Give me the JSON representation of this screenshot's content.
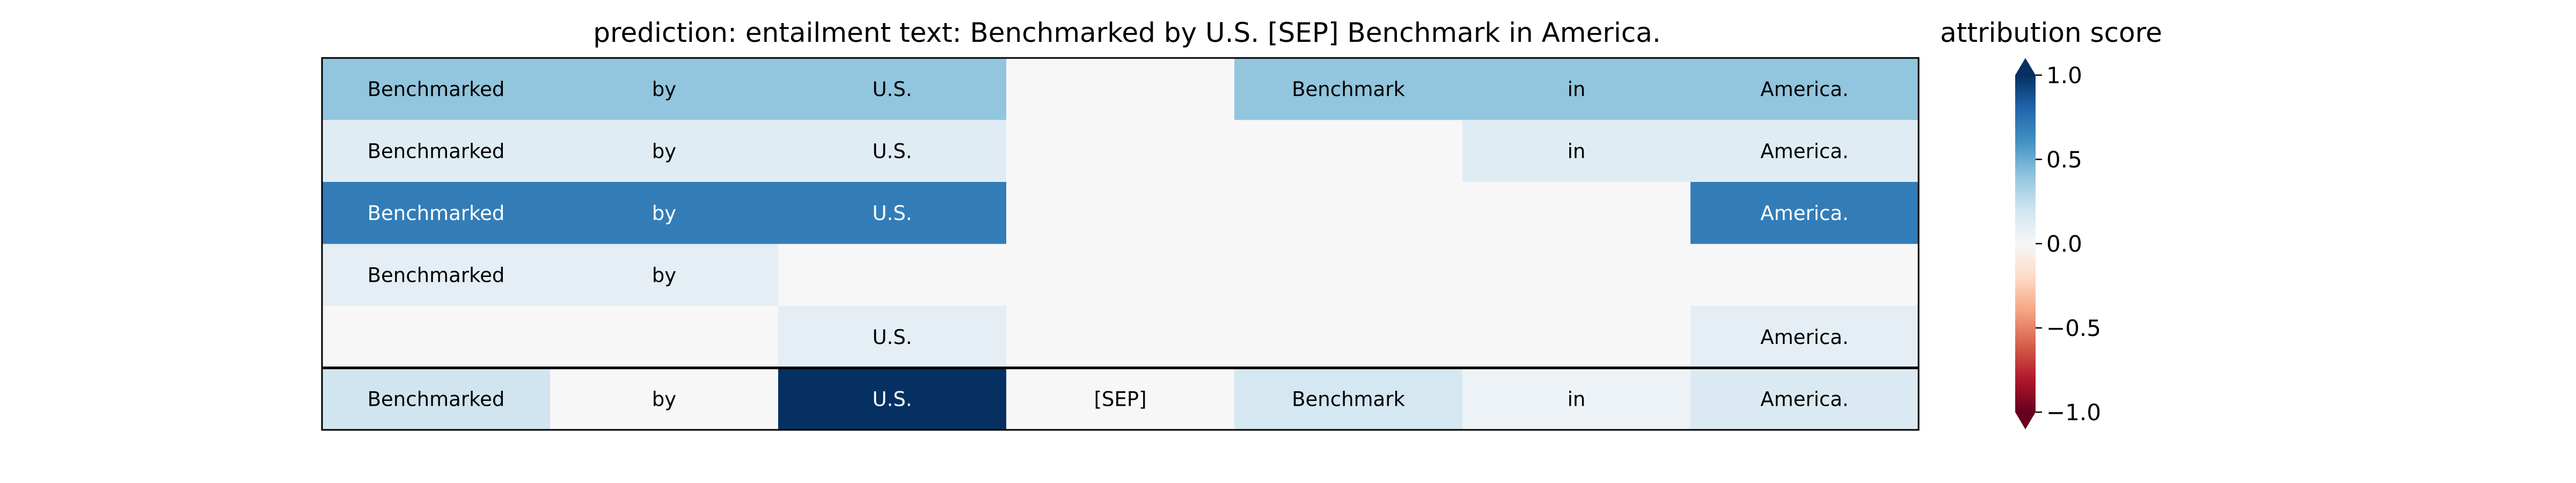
{
  "chart_data": {
    "type": "heatmap",
    "title": "prediction:  entailment     text:  Benchmarked by U.S. [SEP] Benchmark in America.",
    "columns": [
      "Benchmarked",
      "by",
      "U.S.",
      "[SEP]",
      "Benchmark",
      "in",
      "America."
    ],
    "rows": [
      {
        "tokens": [
          "Benchmarked",
          "by",
          "U.S.",
          "",
          "Benchmark",
          "in",
          "America."
        ],
        "values": [
          0.4,
          0.4,
          0.4,
          0.0,
          0.4,
          0.4,
          0.4
        ]
      },
      {
        "tokens": [
          "Benchmarked",
          "by",
          "U.S.",
          "",
          "",
          "in",
          "America."
        ],
        "values": [
          0.12,
          0.12,
          0.12,
          0.0,
          0.0,
          0.12,
          0.12
        ]
      },
      {
        "tokens": [
          "Benchmarked",
          "by",
          "U.S.",
          "",
          "",
          "",
          "America."
        ],
        "values": [
          0.7,
          0.7,
          0.7,
          0.0,
          0.0,
          0.0,
          0.7
        ]
      },
      {
        "tokens": [
          "Benchmarked",
          "by",
          "",
          "",
          "",
          "",
          ""
        ],
        "values": [
          0.1,
          0.1,
          0.0,
          0.0,
          0.0,
          0.0,
          0.0
        ]
      },
      {
        "tokens": [
          "",
          "",
          "U.S.",
          "",
          "",
          "",
          "America."
        ],
        "values": [
          0.0,
          0.0,
          0.1,
          0.0,
          0.0,
          0.0,
          0.1
        ]
      }
    ],
    "summary_row": {
      "tokens": [
        "Benchmarked",
        "by",
        "U.S.",
        "[SEP]",
        "Benchmark",
        "in",
        "America."
      ],
      "values": [
        0.2,
        0.0,
        1.0,
        0.0,
        0.18,
        0.06,
        0.15
      ]
    },
    "colorbar": {
      "label": "attribution score",
      "colormap": "RdBu",
      "vmin": -1.0,
      "vmax": 1.0,
      "ticks": [
        1.0,
        0.5,
        0.0,
        -0.5,
        -1.0
      ],
      "tick_labels": [
        "1.0",
        "0.5",
        "0.0",
        "−0.5",
        "−1.0"
      ]
    }
  }
}
